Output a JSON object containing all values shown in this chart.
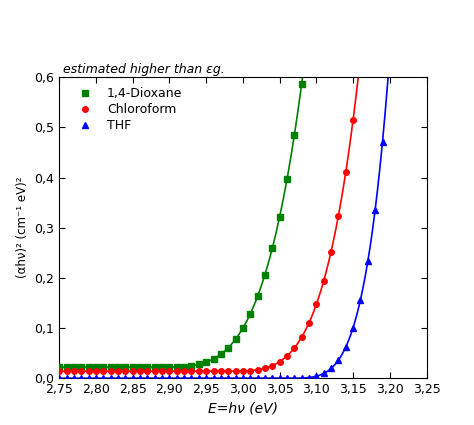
{
  "title": "",
  "xlabel": "E=hν (eV)",
  "ylabel": "(αhν)² (cm⁻¹ eV)²",
  "xlim": [
    2.75,
    3.25
  ],
  "ylim": [
    0.0,
    0.6
  ],
  "xticks": [
    2.75,
    2.8,
    2.85,
    2.9,
    2.95,
    3.0,
    3.05,
    3.1,
    3.15,
    3.2,
    3.25
  ],
  "yticks": [
    0.0,
    0.1,
    0.2,
    0.3,
    0.4,
    0.5,
    0.6
  ],
  "ytick_labels": [
    "0,0",
    "0,1",
    "0,2",
    "0,3",
    "0,4",
    "0,5",
    "0,6"
  ],
  "xtick_labels": [
    "2,75",
    "2,80",
    "2,85",
    "2,90",
    "2,95",
    "3,00",
    "3,05",
    "3,10",
    "3,15",
    "3,20",
    "3,25"
  ],
  "series": [
    {
      "label": "1,4-Dioxane",
      "color": "#008000",
      "marker": "s",
      "markersize": 4,
      "e0": 2.875,
      "scale": 320.0,
      "shift": 0.022,
      "power": 4.0
    },
    {
      "label": "Chloroform",
      "color": "#ff0000",
      "marker": "o",
      "markersize": 4,
      "e0": 2.965,
      "scale": 600.0,
      "shift": 0.014,
      "power": 4.2
    },
    {
      "label": "THF",
      "color": "#0000ff",
      "marker": "^",
      "markersize": 4,
      "e0": 3.052,
      "scale": 3500.0,
      "shift": 0.0,
      "power": 4.5
    }
  ],
  "background_color": "#ffffff",
  "grid": false,
  "top_text": "estimated higher than εg.",
  "figsize": [
    4.74,
    4.25
  ],
  "dpi": 100
}
